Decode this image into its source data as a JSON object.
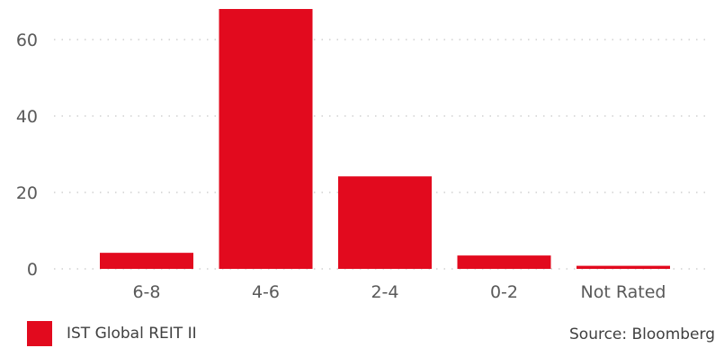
{
  "chart_data": {
    "type": "bar",
    "categories": [
      "6-8",
      "4-6",
      "2-4",
      "0-2",
      "Not Rated"
    ],
    "series": [
      {
        "name": "IST Global REIT II",
        "values": [
          4.2,
          68.0,
          24.2,
          3.5,
          0.8
        ]
      }
    ],
    "ylim": [
      0,
      70
    ],
    "yticks": [
      0,
      20,
      40,
      60
    ],
    "grid": "horizontal-dotted",
    "legend_position": "bottom-left",
    "colors": {
      "bar": "#e20a1e",
      "grid": "#c8c8c8",
      "text": "#595959"
    }
  },
  "legend": {
    "label": "IST Global REIT II"
  },
  "source": "Source: Bloomberg"
}
